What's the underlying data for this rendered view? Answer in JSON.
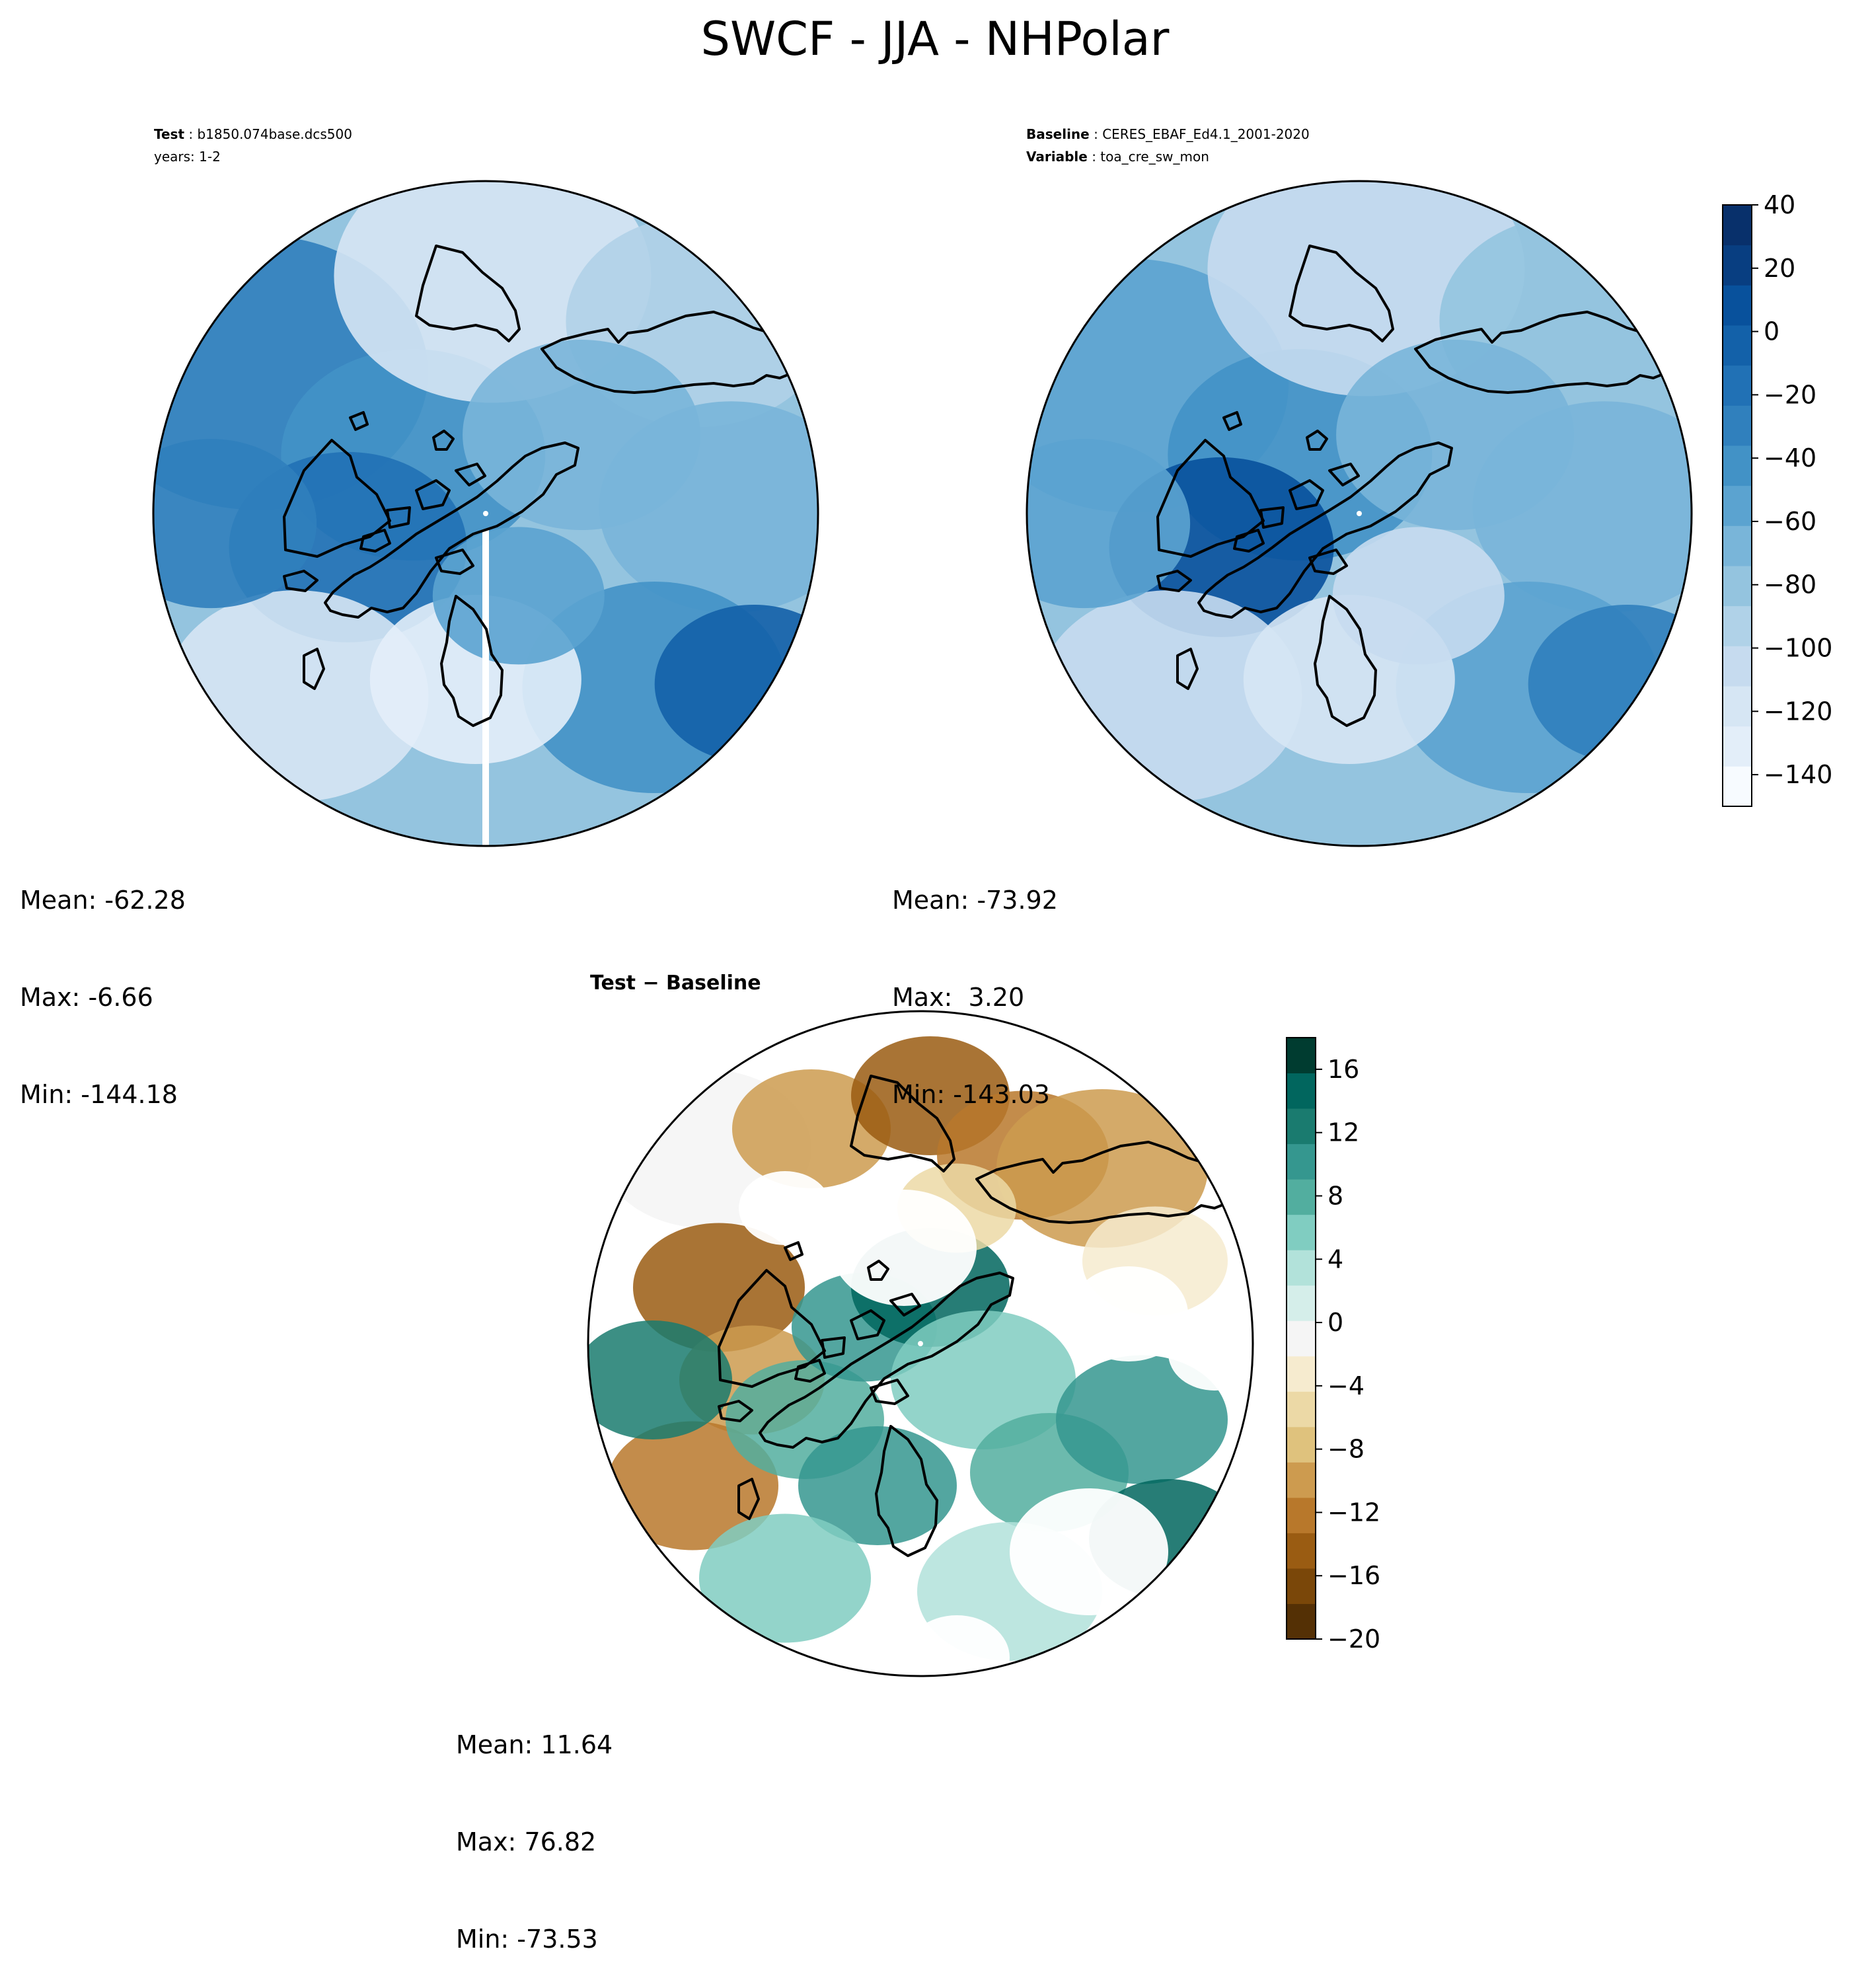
{
  "title": "SWCF - JJA - NHPolar",
  "test_panel": {
    "label_bold": "Test",
    "label_value": "b1850.074base.dcs500",
    "years": "years: 1-2",
    "stats": {
      "mean": "Mean: -62.28",
      "max": "Max: -6.66",
      "min": "Min: -144.18"
    }
  },
  "baseline_panel": {
    "label_bold": "Baseline",
    "label_value": "CERES_EBAF_Ed4.1_2001-2020",
    "variable_bold": "Variable",
    "variable_value": "toa_cre_sw_mon",
    "stats": {
      "mean": "Mean: -73.92",
      "max": "Max:  3.20",
      "min": "Min: -143.03"
    }
  },
  "diff_panel": {
    "title": "Test − Baseline",
    "stats": {
      "mean": "Mean: 11.64",
      "max": "Max: 76.82",
      "min": "Min: -73.53"
    }
  },
  "colorbar_top": {
    "ticks": [
      "40",
      "20",
      "0",
      "−20",
      "−40",
      "−60",
      "−80",
      "−100",
      "−120",
      "−140"
    ],
    "tick_values": [
      40,
      20,
      0,
      -20,
      -40,
      -60,
      -80,
      -100,
      -120,
      -140
    ],
    "range": [
      -150,
      40
    ],
    "colormap": "Blues_r",
    "colors": [
      "#f7fbff",
      "#e3eef9",
      "#d6e6f4",
      "#c6dbef",
      "#b0d2e8",
      "#94c4df",
      "#79b5d9",
      "#5ba3d0",
      "#4292c6",
      "#3080bd",
      "#2171b5",
      "#1361a9",
      "#08519c",
      "#083e81",
      "#08306b"
    ]
  },
  "colorbar_diff": {
    "ticks": [
      "16",
      "12",
      "8",
      "4",
      "0",
      "−4",
      "−8",
      "−12",
      "−16",
      "−20"
    ],
    "tick_values": [
      16,
      12,
      8,
      4,
      0,
      -4,
      -8,
      -12,
      -16,
      -20
    ],
    "range": [
      -20,
      18
    ],
    "colormap": "BrBG",
    "colors": [
      "#543005",
      "#7a4709",
      "#9a5c12",
      "#b8782b",
      "#cd9b4f",
      "#dfc27d",
      "#ecd9a6",
      "#f6ebcf",
      "#f5f5f5",
      "#d5eeea",
      "#b2e2da",
      "#80cdc1",
      "#52ae9f",
      "#35978f",
      "#1a7b6f",
      "#01665e",
      "#003c30"
    ]
  }
}
